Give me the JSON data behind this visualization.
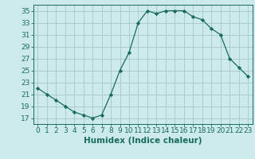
{
  "x": [
    0,
    1,
    2,
    3,
    4,
    5,
    6,
    7,
    8,
    9,
    10,
    11,
    12,
    13,
    14,
    15,
    16,
    17,
    18,
    19,
    20,
    21,
    22,
    23
  ],
  "y": [
    22,
    21,
    20,
    19,
    18,
    17.5,
    17,
    17.5,
    21,
    25,
    28,
    33,
    35,
    34.5,
    35,
    35,
    35,
    34,
    33.5,
    32,
    31,
    27,
    25.5,
    24
  ],
  "line_color": "#1a6b5a",
  "marker": "D",
  "markersize": 2.2,
  "bg_color": "#cceaea",
  "grid_color": "#aacccc",
  "xlabel": "Humidex (Indice chaleur)",
  "xlim": [
    -0.5,
    23.5
  ],
  "ylim": [
    16,
    36
  ],
  "yticks": [
    17,
    19,
    21,
    23,
    25,
    27,
    29,
    31,
    33,
    35
  ],
  "xticks": [
    0,
    1,
    2,
    3,
    4,
    5,
    6,
    7,
    8,
    9,
    10,
    11,
    12,
    13,
    14,
    15,
    16,
    17,
    18,
    19,
    20,
    21,
    22,
    23
  ],
  "tick_fontsize": 6.5,
  "xlabel_fontsize": 7.5
}
